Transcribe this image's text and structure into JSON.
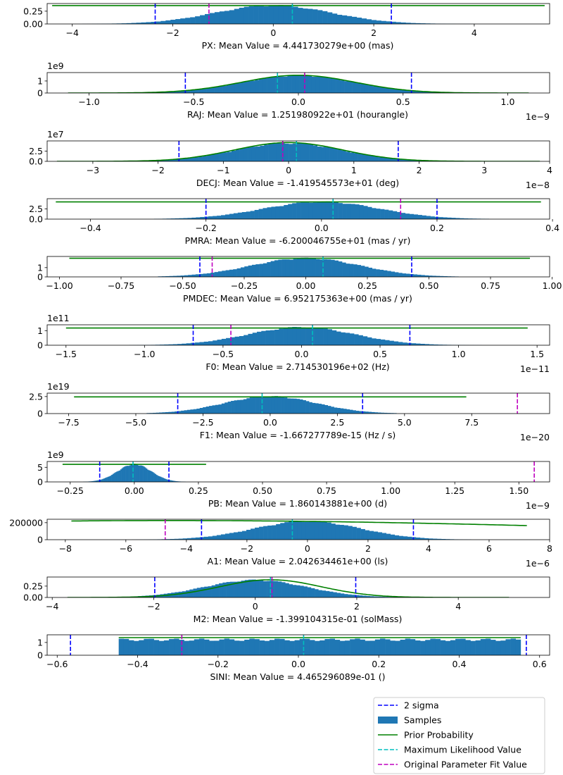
{
  "colors": {
    "samples": "#1f77b4",
    "prior": "#008000",
    "sigma": "#0000ff",
    "maxlike": "#00bfbf",
    "original": "#bf00bf"
  },
  "legend": {
    "entries": [
      {
        "label": "2 sigma",
        "kind": "dashed",
        "color": "#0000ff"
      },
      {
        "label": "Samples",
        "kind": "patch",
        "color": "#1f77b4"
      },
      {
        "label": "Prior Probability",
        "kind": "line",
        "color": "#008000"
      },
      {
        "label": "Maximum Likelihood Value",
        "kind": "dashed",
        "color": "#00bfbf"
      },
      {
        "label": "Original Parameter Fit Value",
        "kind": "dashed",
        "color": "#bf00bf"
      }
    ]
  },
  "chart_data": [
    {
      "type": "bar",
      "xlabel": "PX: Mean Value = 4.441730279e+00 (mas)",
      "xlim": [
        -4.5,
        5.5
      ],
      "ylim": [
        0,
        0.4
      ],
      "xticks": [
        -4,
        -2,
        0,
        2,
        4
      ],
      "xtick_labels": [
        "−4",
        "−2",
        "0",
        "2",
        "4"
      ],
      "yticks": [
        0,
        0.25
      ],
      "ytick_labels": [
        "0.00",
        "0.25"
      ],
      "offset": "",
      "hist": {
        "kind": "gauss",
        "mu": 0,
        "sigma": 1.15,
        "lo": -3.8,
        "hi": 4.0,
        "peak": 0.36
      },
      "prior": {
        "kind": "flat",
        "y": 0.36,
        "lo": -4.4,
        "hi": 5.4
      },
      "sigma_lines": [
        -2.35,
        2.35
      ],
      "maxlike": 0.38,
      "original": -1.28
    },
    {
      "type": "bar",
      "xlabel": "RAJ: Mean Value = 1.251980922e+01 (hourangle)",
      "xlim": [
        -1.2,
        1.2
      ],
      "ylim": [
        0,
        1.7
      ],
      "xticks": [
        -1.0,
        -0.5,
        0.0,
        0.5,
        1.0
      ],
      "xtick_labels": [
        "−1.0",
        "−0.5",
        "0.0",
        "0.5",
        "1.0"
      ],
      "yticks": [
        0,
        1
      ],
      "ytick_labels": [
        "0",
        "1"
      ],
      "offset": "1e9",
      "xoffset": "1e−9",
      "hist": {
        "kind": "gauss",
        "mu": 0,
        "sigma": 0.27,
        "lo": -0.75,
        "hi": 0.8,
        "peak": 1.45
      },
      "prior": {
        "kind": "gauss",
        "mu": 0,
        "sigma": 0.27,
        "peak": 1.48,
        "lo": -1.1,
        "hi": 1.1
      },
      "sigma_lines": [
        -0.54,
        0.54
      ],
      "maxlike": -0.1,
      "original": 0.03
    },
    {
      "type": "bar",
      "xlabel": "DECJ: Mean Value = -1.419545573e+01 (deg)",
      "xlim": [
        -3.7,
        4.0
      ],
      "ylim": [
        0,
        5.0
      ],
      "xticks": [
        -3,
        -2,
        -1,
        0,
        1,
        2,
        3,
        4
      ],
      "xtick_labels": [
        "−3",
        "−2",
        "−1",
        "0",
        "1",
        "2",
        "3",
        "4"
      ],
      "yticks": [
        0,
        2.5
      ],
      "ytick_labels": [
        "0.0",
        "2.5"
      ],
      "offset": "1e7",
      "xoffset": "1e−8",
      "hist": {
        "kind": "gauss",
        "mu": 0,
        "sigma": 0.83,
        "lo": -2.5,
        "hi": 2.5,
        "peak": 4.4
      },
      "prior": {
        "kind": "gauss",
        "mu": 0,
        "sigma": 0.83,
        "peak": 4.6,
        "lo": -3.55,
        "hi": 3.85
      },
      "sigma_lines": [
        -1.68,
        1.68
      ],
      "maxlike": 0.12,
      "original": -0.09
    },
    {
      "type": "bar",
      "xlabel": "PMRA: Mean Value = -6.200046755e+01 (mas / yr)",
      "xlim": [
        -0.475,
        0.395
      ],
      "ylim": [
        0,
        5.0
      ],
      "xticks": [
        -0.4,
        -0.2,
        0.0,
        0.2,
        0.4
      ],
      "xtick_labels": [
        "−0.4",
        "−0.2",
        "0.0",
        "0.2",
        "0.4"
      ],
      "yticks": [
        0,
        2.5
      ],
      "ytick_labels": [
        "0.0",
        "2.5"
      ],
      "offset": "",
      "hist": {
        "kind": "gauss",
        "mu": 0,
        "sigma": 0.1,
        "lo": -0.29,
        "hi": 0.29,
        "peak": 4.2
      },
      "prior": {
        "kind": "flat",
        "y": 4.2,
        "lo": -0.46,
        "hi": 0.38
      },
      "sigma_lines": [
        -0.2,
        0.2
      ],
      "maxlike": 0.02,
      "original": 0.137
    },
    {
      "type": "bar",
      "xlabel": "PMDEC: Mean Value = 6.952175363e+00 (mas / yr)",
      "xlim": [
        -1.05,
        0.99
      ],
      "ylim": [
        0,
        2.2
      ],
      "xticks": [
        -1.0,
        -0.75,
        -0.5,
        -0.25,
        0.0,
        0.25,
        0.5,
        0.75,
        1.0
      ],
      "xtick_labels": [
        "−1.00",
        "−0.75",
        "−0.50",
        "−0.25",
        "0.00",
        "0.25",
        "0.50",
        "0.75",
        "1.00"
      ],
      "yticks": [
        0,
        1
      ],
      "ytick_labels": [
        "0",
        "1"
      ],
      "offset": "",
      "hist": {
        "kind": "gauss",
        "mu": 0,
        "sigma": 0.22,
        "lo": -0.6,
        "hi": 0.62,
        "peak": 2.0
      },
      "prior": {
        "kind": "flat",
        "y": 2.0,
        "lo": -0.96,
        "hi": 0.91
      },
      "sigma_lines": [
        -0.43,
        0.43
      ],
      "maxlike": 0.07,
      "original": -0.38
    },
    {
      "type": "bar",
      "xlabel": "F0: Mean Value = 2.714530196e+02 (Hz)",
      "xlim": [
        -1.62,
        1.58
      ],
      "ylim": [
        0,
        1.4
      ],
      "xticks": [
        -1.5,
        -1.0,
        -0.5,
        0.0,
        0.5,
        1.0,
        1.5
      ],
      "xtick_labels": [
        "−1.5",
        "−1.0",
        "−0.5",
        "0.0",
        "0.5",
        "1.0",
        "1.5"
      ],
      "yticks": [
        0,
        1
      ],
      "ytick_labels": [
        "0",
        "1"
      ],
      "offset": "1e11",
      "xoffset": "1e−11",
      "hist": {
        "kind": "gauss",
        "mu": 0,
        "sigma": 0.34,
        "lo": -1.1,
        "hi": 1.15,
        "peak": 1.22
      },
      "prior": {
        "kind": "flat",
        "y": 1.18,
        "lo": -1.5,
        "hi": 1.44
      },
      "sigma_lines": [
        -0.69,
        0.69
      ],
      "maxlike": 0.07,
      "original": -0.45
    },
    {
      "type": "bar",
      "xlabel": "F1: Mean Value = -1.667277789e-15 (Hz / s)",
      "xlim": [
        -8.3,
        10.4
      ],
      "ylim": [
        0,
        3.0
      ],
      "xticks": [
        -7.5,
        -5.0,
        -2.5,
        0.0,
        2.5,
        5.0,
        7.5
      ],
      "xtick_labels": [
        "−7.5",
        "−5.0",
        "−2.5",
        "0.0",
        "2.5",
        "5.0",
        "7.5"
      ],
      "yticks": [
        0,
        2.5
      ],
      "ytick_labels": [
        "0",
        "2.5"
      ],
      "offset": "1e19",
      "xoffset": "1e−20",
      "hist": {
        "kind": "gauss",
        "mu": 0,
        "sigma": 1.72,
        "lo": -4.6,
        "hi": 4.7,
        "peak": 2.5
      },
      "prior": {
        "kind": "flat",
        "y": 2.45,
        "lo": -7.3,
        "hi": 7.3
      },
      "sigma_lines": [
        -3.44,
        3.44
      ],
      "maxlike": -0.3,
      "original": 9.2
    },
    {
      "type": "bar",
      "xlabel": "PB: Mean Value = 1.860143881e+00 (d)",
      "xlim": [
        -0.34,
        1.62
      ],
      "ylim": [
        0,
        7.0
      ],
      "xticks": [
        -0.25,
        0.0,
        0.25,
        0.5,
        0.75,
        1.0,
        1.25,
        1.5
      ],
      "xtick_labels": [
        "−0.25",
        "0.00",
        "0.25",
        "0.50",
        "0.75",
        "1.00",
        "1.25",
        "1.50"
      ],
      "yticks": [
        0,
        5
      ],
      "ytick_labels": [
        "0",
        "5"
      ],
      "offset": "1e9",
      "xoffset": "1e−9",
      "hist": {
        "kind": "gauss",
        "mu": 0,
        "sigma": 0.065,
        "lo": -0.2,
        "hi": 0.2,
        "peak": 6.0
      },
      "prior": {
        "kind": "flat",
        "y": 6.0,
        "lo": -0.28,
        "hi": 0.28
      },
      "sigma_lines": [
        -0.135,
        0.135
      ],
      "maxlike": -0.005,
      "original": 1.56
    },
    {
      "type": "bar",
      "xlabel": "A1: Mean Value = 2.042634461e+00 (ls)",
      "xlim": [
        -8.6,
        8.0
      ],
      "ylim": [
        0,
        240000
      ],
      "xticks": [
        -8,
        -6,
        -4,
        -2,
        0,
        2,
        4,
        6,
        8
      ],
      "xtick_labels": [
        "−8",
        "−6",
        "−4",
        "−2",
        "0",
        "2",
        "4",
        "6",
        "8"
      ],
      "yticks": [
        0,
        200000
      ],
      "ytick_labels": [
        "0",
        "200000"
      ],
      "offset": "",
      "xoffset": "1e−6",
      "hist": {
        "kind": "gauss",
        "mu": 0,
        "sigma": 1.75,
        "lo": -5.8,
        "hi": 5.4,
        "peak": 215000
      },
      "prior": {
        "kind": "curve",
        "mu": -4.5,
        "sigma": 15,
        "peak": 225000,
        "lo": -7.8,
        "hi": 7.25
      },
      "sigma_lines": [
        -3.5,
        3.5
      ],
      "maxlike": -0.5,
      "original": -4.7
    },
    {
      "type": "bar",
      "xlabel": "M2: Mean Value = -1.399104315e-01 (solMass)",
      "xlim": [
        -4.1,
        5.8
      ],
      "ylim": [
        0,
        0.45
      ],
      "xticks": [
        -4,
        -2,
        0,
        2,
        4
      ],
      "xtick_labels": [
        "−4",
        "−2",
        "0",
        "2",
        "4"
      ],
      "yticks": [
        0,
        0.25
      ],
      "ytick_labels": [
        "0.00",
        "0.25"
      ],
      "offset": "",
      "hist": {
        "kind": "gauss",
        "mu": 0,
        "sigma": 1.0,
        "lo": -2.6,
        "hi": 3.2,
        "peak": 0.38
      },
      "prior": {
        "kind": "gauss",
        "mu": 0.3,
        "sigma": 1.0,
        "peak": 0.39,
        "lo": -3.7,
        "hi": 5.0
      },
      "sigma_lines": [
        -1.98,
        1.98
      ],
      "maxlike": 0.3,
      "original": 0.33
    },
    {
      "type": "bar",
      "xlabel": "SINI: Mean Value = 4.465296089e-01 ()",
      "xlim": [
        -0.625,
        0.625
      ],
      "ylim": [
        0,
        1.6
      ],
      "xticks": [
        -0.6,
        -0.4,
        -0.2,
        0.0,
        0.2,
        0.4,
        0.6
      ],
      "xtick_labels": [
        "−0.6",
        "−0.4",
        "−0.2",
        "0.0",
        "0.2",
        "0.4",
        "0.6"
      ],
      "yticks": [
        0,
        1
      ],
      "ytick_labels": [
        "0",
        "1"
      ],
      "offset": "",
      "hist": {
        "kind": "uniform",
        "lo": -0.447,
        "hi": 0.553,
        "peak": 1.3
      },
      "prior": {
        "kind": "flat",
        "y": 1.38,
        "lo": -0.447,
        "hi": 0.553
      },
      "sigma_lines": [
        -0.567,
        0.567
      ],
      "maxlike": 0.013,
      "original": -0.29
    }
  ]
}
